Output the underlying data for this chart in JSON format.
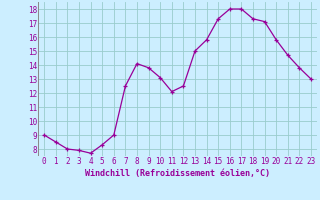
{
  "x": [
    0,
    1,
    2,
    3,
    4,
    5,
    6,
    7,
    8,
    9,
    10,
    11,
    12,
    13,
    14,
    15,
    16,
    17,
    18,
    19,
    20,
    21,
    22,
    23
  ],
  "y": [
    9.0,
    8.5,
    8.0,
    7.9,
    7.7,
    8.3,
    9.0,
    12.5,
    14.1,
    13.8,
    13.1,
    12.1,
    12.5,
    15.0,
    15.8,
    17.3,
    18.0,
    18.0,
    17.3,
    17.1,
    15.8,
    14.7,
    13.8,
    13.0
  ],
  "line_color": "#990099",
  "marker": "+",
  "marker_color": "#990099",
  "bg_color": "#cceeff",
  "grid_color": "#99cccc",
  "xlabel": "Windchill (Refroidissement éolien,°C)",
  "xlim": [
    -0.5,
    23.5
  ],
  "ylim": [
    7.5,
    18.5
  ],
  "yticks": [
    8,
    9,
    10,
    11,
    12,
    13,
    14,
    15,
    16,
    17,
    18
  ],
  "xtick_labels": [
    "0",
    "1",
    "2",
    "3",
    "4",
    "5",
    "6",
    "7",
    "8",
    "9",
    "10",
    "11",
    "12",
    "13",
    "14",
    "15",
    "16",
    "17",
    "18",
    "19",
    "20",
    "21",
    "22",
    "23"
  ],
  "tick_fontsize": 5.5,
  "label_fontsize": 6.0
}
